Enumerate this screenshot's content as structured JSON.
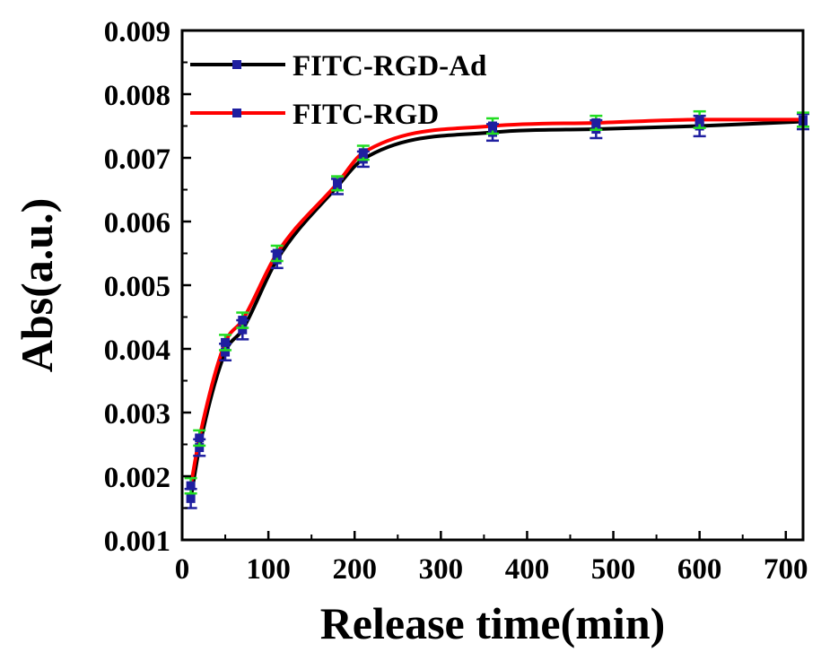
{
  "chart_data": {
    "type": "line",
    "xlabel": "Release time(min)",
    "ylabel": "Abs(a.u.)",
    "xlim": [
      0,
      720
    ],
    "ylim": [
      0.001,
      0.009
    ],
    "x_ticks": [
      "0",
      "100",
      "200",
      "300",
      "400",
      "500",
      "600",
      "700"
    ],
    "y_ticks": [
      "0.001",
      "0.002",
      "0.003",
      "0.004",
      "0.005",
      "0.006",
      "0.007",
      "0.008",
      "0.009"
    ],
    "grid": false,
    "legend_position": "top-left",
    "x": [
      10,
      20,
      50,
      70,
      110,
      180,
      210,
      360,
      480,
      600,
      720
    ],
    "series": [
      {
        "name": "FITC-RGD-Ad",
        "line_color": "#000000",
        "marker_color": "#1f1fa0",
        "values": [
          0.00165,
          0.00245,
          0.00395,
          0.0043,
          0.0054,
          0.00655,
          0.00698,
          0.0074,
          0.00745,
          0.0075,
          0.00757
        ],
        "error": [
          0.00015,
          0.00013,
          0.00013,
          0.00015,
          0.00013,
          0.00012,
          0.00012,
          0.00013,
          0.00014,
          0.00016,
          0.00012
        ]
      },
      {
        "name": "FITC-RGD",
        "line_color": "#ff0000",
        "marker_color": "#1f1fa0",
        "error_color": "#22dd22",
        "values": [
          0.00185,
          0.0026,
          0.0041,
          0.00445,
          0.0055,
          0.0066,
          0.00708,
          0.0075,
          0.00755,
          0.0076,
          0.0076
        ],
        "error": [
          0.00012,
          0.00012,
          0.00012,
          0.00012,
          0.00012,
          0.00011,
          0.00011,
          0.00012,
          0.00011,
          0.00013,
          0.00011
        ]
      }
    ]
  }
}
